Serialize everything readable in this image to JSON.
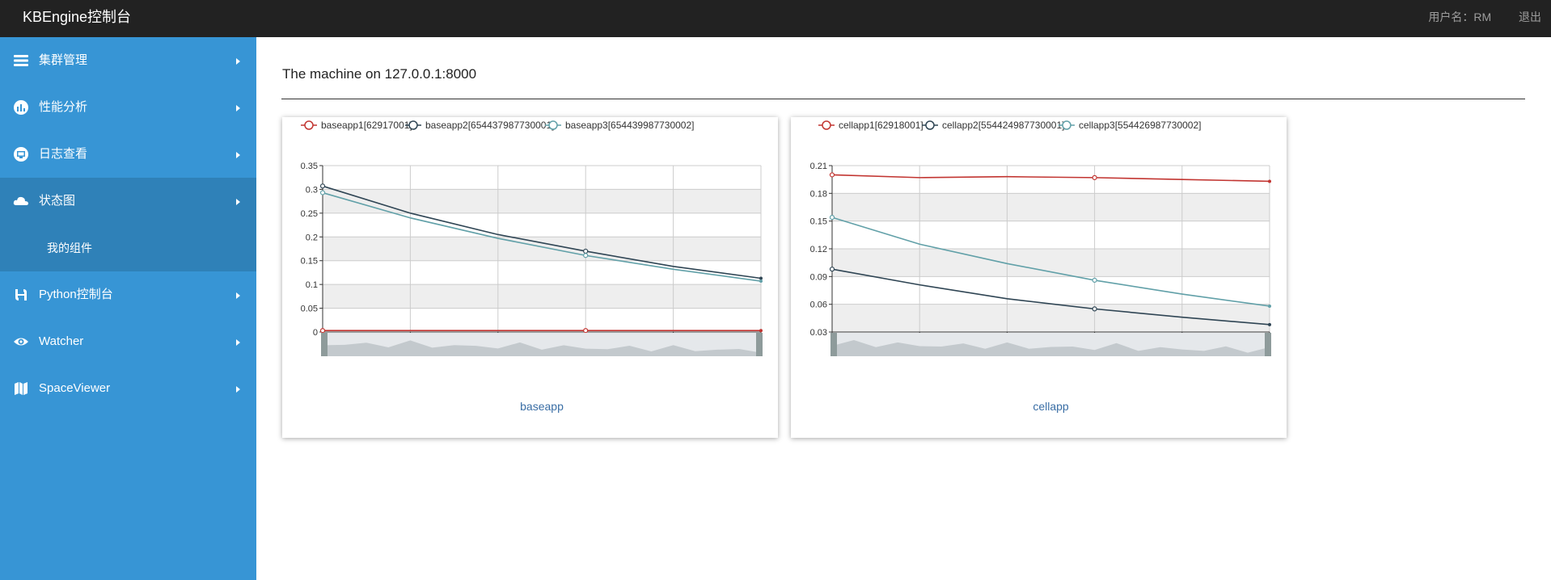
{
  "app": {
    "brand": "KBEngine控制台",
    "user_label": "用户名：RM",
    "logout_label": "退出"
  },
  "sidebar": {
    "items": [
      {
        "label": "集群管理",
        "icon": "layers-icon",
        "active": false
      },
      {
        "label": "性能分析",
        "icon": "bar-chart-icon",
        "active": false
      },
      {
        "label": "日志查看",
        "icon": "monitor-icon",
        "active": false
      },
      {
        "label": "状态图",
        "icon": "cloud-icon",
        "active": true
      },
      {
        "label": "Python控制台",
        "icon": "python-icon",
        "active": false
      },
      {
        "label": "Watcher",
        "icon": "eye-icon",
        "active": false
      },
      {
        "label": "SpaceViewer",
        "icon": "map-icon",
        "active": false
      }
    ],
    "subitem": {
      "label": "我的组件"
    }
  },
  "main": {
    "title": "The machine on 127.0.0.1:8000"
  },
  "chart_data": [
    {
      "type": "line",
      "xlabel": "baseapp",
      "ylim": [
        0,
        0.35
      ],
      "yticks": [
        "0",
        "0.05",
        "0.1",
        "0.15",
        "0.2",
        "0.25",
        "0.3",
        "0.35"
      ],
      "x": [
        0,
        1,
        2,
        3,
        4,
        5
      ],
      "series": [
        {
          "name": "baseapp1[62917001]",
          "color": "#c23531",
          "values": [
            0.003,
            0.003,
            0.003,
            0.003,
            0.003,
            0.003
          ]
        },
        {
          "name": "baseapp2[654437987730001]",
          "color": "#2f4554",
          "values": [
            0.307,
            0.25,
            0.205,
            0.17,
            0.138,
            0.113
          ]
        },
        {
          "name": "baseapp3[654439987730002]",
          "color": "#61a0a8",
          "values": [
            0.293,
            0.24,
            0.197,
            0.161,
            0.132,
            0.107
          ]
        }
      ],
      "grid": true,
      "legend": "top"
    },
    {
      "type": "line",
      "xlabel": "cellapp",
      "ylim": [
        0.03,
        0.21
      ],
      "yticks": [
        "0.03",
        "0.06",
        "0.09",
        "0.12",
        "0.15",
        "0.18",
        "0.21"
      ],
      "x": [
        0,
        1,
        2,
        3,
        4,
        5
      ],
      "series": [
        {
          "name": "cellapp1[62918001]",
          "color": "#c23531",
          "values": [
            0.2,
            0.197,
            0.198,
            0.197,
            0.195,
            0.193
          ]
        },
        {
          "name": "cellapp2[554424987730001]",
          "color": "#2f4554",
          "values": [
            0.098,
            0.081,
            0.066,
            0.055,
            0.046,
            0.038
          ]
        },
        {
          "name": "cellapp3[554426987730002]",
          "color": "#61a0a8",
          "values": [
            0.154,
            0.125,
            0.104,
            0.086,
            0.071,
            0.058
          ]
        }
      ],
      "grid": true,
      "legend": "top"
    }
  ]
}
